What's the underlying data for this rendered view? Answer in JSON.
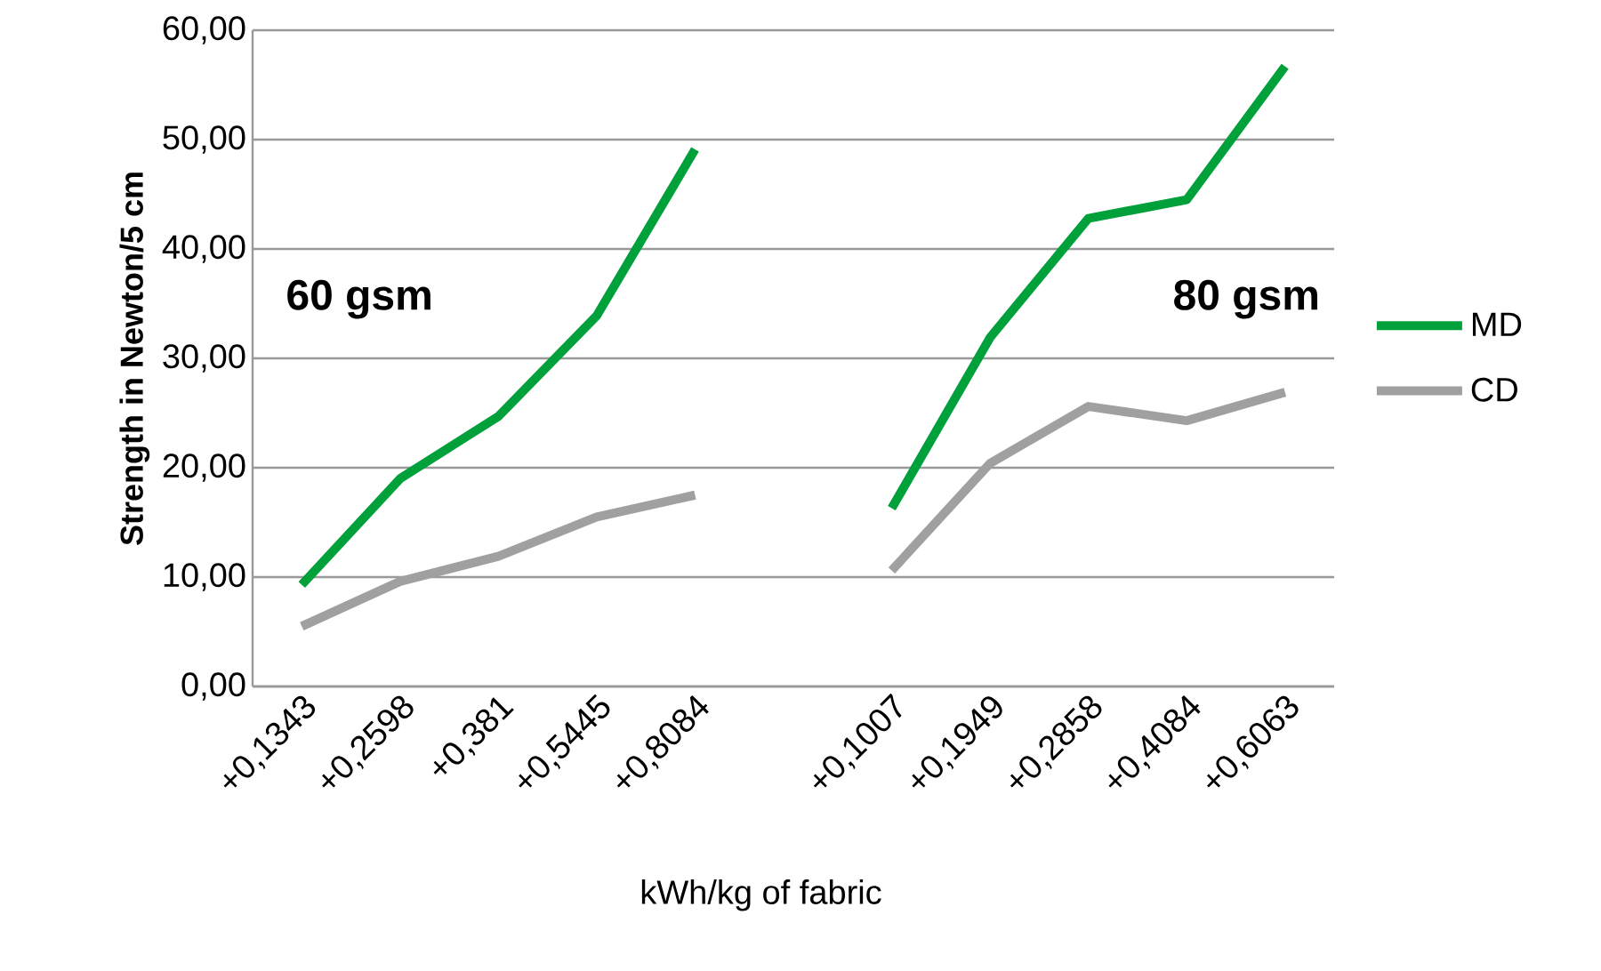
{
  "chart_data": {
    "type": "line",
    "xlabel": "kWh/kg of fabric",
    "ylabel": "Strength in Newton/5 cm",
    "categories": [
      "+0,1343",
      "+0,2598",
      "+0,381",
      "+0,5445",
      "+0,8084",
      null,
      "+0,1007",
      "+0,1949",
      "+0,2858",
      "+0,4084",
      "+0,6063"
    ],
    "series": [
      {
        "name": "MD",
        "color": "#00a03a",
        "values": [
          9.3,
          19.0,
          24.7,
          33.9,
          49.1,
          null,
          16.3,
          31.9,
          42.8,
          44.5,
          56.7
        ]
      },
      {
        "name": "CD",
        "color": "#a0a0a0",
        "values": [
          5.5,
          9.6,
          11.9,
          15.5,
          17.5,
          null,
          10.6,
          20.4,
          25.6,
          24.3,
          26.9
        ]
      }
    ],
    "ylim": [
      0,
      60
    ],
    "yticks": [
      {
        "value": 0,
        "label": "0,00"
      },
      {
        "value": 10,
        "label": "10,00"
      },
      {
        "value": 20,
        "label": "20,00"
      },
      {
        "value": 30,
        "label": "30,00"
      },
      {
        "value": 40,
        "label": "40,00"
      },
      {
        "value": 50,
        "label": "50,00"
      },
      {
        "value": 60,
        "label": "60,00"
      }
    ],
    "grid": "y",
    "legend": "right",
    "marker": "none",
    "line_style": "solid",
    "annotations": [
      "60 gsm",
      "80 gsm"
    ]
  }
}
